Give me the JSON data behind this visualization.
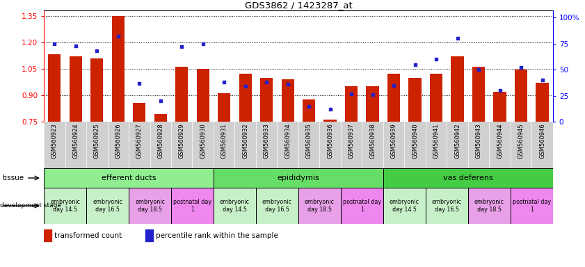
{
  "title": "GDS3862 / 1423287_at",
  "samples": [
    "GSM560923",
    "GSM560924",
    "GSM560925",
    "GSM560926",
    "GSM560927",
    "GSM560928",
    "GSM560929",
    "GSM560930",
    "GSM560931",
    "GSM560932",
    "GSM560933",
    "GSM560934",
    "GSM560935",
    "GSM560936",
    "GSM560937",
    "GSM560938",
    "GSM560939",
    "GSM560940",
    "GSM560941",
    "GSM560942",
    "GSM560943",
    "GSM560944",
    "GSM560945",
    "GSM560946"
  ],
  "red_values": [
    1.13,
    1.12,
    1.11,
    1.35,
    0.855,
    0.795,
    1.06,
    1.05,
    0.91,
    1.02,
    1.0,
    0.99,
    0.875,
    0.76,
    0.95,
    0.95,
    1.02,
    1.0,
    1.02,
    1.12,
    1.06,
    0.92,
    1.045,
    0.97
  ],
  "blue_values": [
    75,
    73,
    68,
    82,
    37,
    20,
    72,
    75,
    38,
    34,
    38,
    36,
    15,
    12,
    27,
    26,
    35,
    55,
    60,
    80,
    50,
    30,
    52,
    40
  ],
  "ylim_left": [
    0.75,
    1.38
  ],
  "ylim_right": [
    0,
    107
  ],
  "yticks_left": [
    0.75,
    0.9,
    1.05,
    1.2,
    1.35
  ],
  "yticks_right": [
    0,
    25,
    50,
    75,
    100
  ],
  "bar_color": "#cc2200",
  "dot_color": "#2222cc",
  "tissue_groups": [
    {
      "label": "efferent ducts",
      "start": 0,
      "end": 8,
      "color": "#90ee90"
    },
    {
      "label": "epididymis",
      "start": 8,
      "end": 16,
      "color": "#66dd66"
    },
    {
      "label": "vas deferens",
      "start": 16,
      "end": 24,
      "color": "#44cc44"
    }
  ],
  "dev_stages": [
    {
      "label": "embryonic\nday 14.5",
      "start": 0,
      "end": 2,
      "color": "#c8f0c8"
    },
    {
      "label": "embryonic\nday 16.5",
      "start": 2,
      "end": 4,
      "color": "#c8f0c8"
    },
    {
      "label": "embryonic\nday 18.5",
      "start": 4,
      "end": 6,
      "color": "#e8a0e8"
    },
    {
      "label": "postnatal day\n1",
      "start": 6,
      "end": 8,
      "color": "#ee88ee"
    },
    {
      "label": "embryonic\nday 14.5",
      "start": 8,
      "end": 10,
      "color": "#c8f0c8"
    },
    {
      "label": "embryonic\nday 16.5",
      "start": 10,
      "end": 12,
      "color": "#c8f0c8"
    },
    {
      "label": "embryonic\nday 18.5",
      "start": 12,
      "end": 14,
      "color": "#e8a0e8"
    },
    {
      "label": "postnatal day\n1",
      "start": 14,
      "end": 16,
      "color": "#ee88ee"
    },
    {
      "label": "embryonic\nday 14.5",
      "start": 16,
      "end": 18,
      "color": "#c8f0c8"
    },
    {
      "label": "embryonic\nday 16.5",
      "start": 18,
      "end": 20,
      "color": "#c8f0c8"
    },
    {
      "label": "embryonic\nday 18.5",
      "start": 20,
      "end": 22,
      "color": "#e8a0e8"
    },
    {
      "label": "postnatal day\n1",
      "start": 22,
      "end": 24,
      "color": "#ee88ee"
    }
  ],
  "legend_red": "transformed count",
  "legend_blue": "percentile rank within the sample",
  "xtick_bg": "#d0d0d0"
}
